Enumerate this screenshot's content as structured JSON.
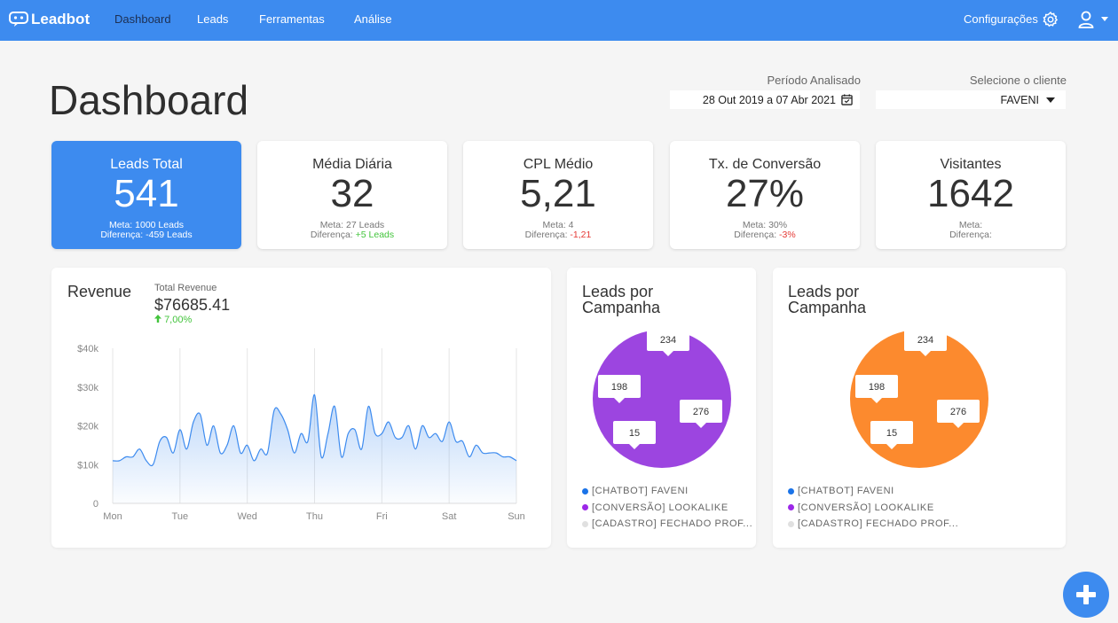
{
  "nav": {
    "brand": "Leadbot",
    "items": [
      "Dashboard",
      "Leads",
      "Ferramentas",
      "Análise"
    ],
    "active": "Dashboard",
    "config_label": "Configurações"
  },
  "page": {
    "title": "Dashboard",
    "period_label": "Período Analisado",
    "period_value": "28 Out 2019 a 07 Abr 2021",
    "client_label": "Selecione o cliente",
    "client_value": "FAVENI"
  },
  "kpis": [
    {
      "title": "Leads Total",
      "value": "541",
      "meta": "Meta: 1000 Leads",
      "diff_label": "Diferença:",
      "diff": "-459 Leads",
      "diff_status": "none"
    },
    {
      "title": "Média Diária",
      "value": "32",
      "meta": "Meta: 27 Leads",
      "diff_label": "Diferença:",
      "diff": "+5 Leads",
      "diff_status": "positive"
    },
    {
      "title": "CPL Médio",
      "value": "5,21",
      "meta": "Meta: 4",
      "diff_label": "Diferença:",
      "diff": "-1,21",
      "diff_status": "negative"
    },
    {
      "title": "Tx. de Conversão",
      "value": "27%",
      "meta": "Meta: 30%",
      "diff_label": "Diferença:",
      "diff": "-3%",
      "diff_status": "negative"
    },
    {
      "title": "Visitantes",
      "value": "1642",
      "meta": "Meta:",
      "diff_label": "Diferença:",
      "diff": "",
      "diff_status": "none"
    }
  ],
  "revenue": {
    "title": "Revenue",
    "total_label": "Total Revenue",
    "total_value": "$76685.41",
    "change": "7,00%",
    "icons": {
      "change": "arrow-up-icon"
    }
  },
  "colors": {
    "primary": "#3d8bef",
    "positive": "#43c43c",
    "negative": "#e53935",
    "purple": "#9c45e0",
    "orange": "#fc8a2e",
    "line": "#3d8bef"
  },
  "chart_data": [
    {
      "type": "area",
      "title": "Revenue",
      "categories": [
        "Mon",
        "Tue",
        "Wed",
        "Thu",
        "Fri",
        "Sat",
        "Sun"
      ],
      "ytick_labels": [
        "0",
        "$10k",
        "$20k",
        "$30k",
        "$40k"
      ],
      "ylim": [
        0,
        40000
      ],
      "grid": "vertical",
      "series": [
        {
          "x": [
            0,
            0.1,
            0.2,
            0.3,
            0.4,
            0.5,
            0.6,
            0.7,
            0.8,
            0.9,
            1,
            1.1,
            1.2,
            1.3,
            1.4,
            1.5,
            1.6,
            1.7,
            1.8,
            1.9,
            2,
            2.1,
            2.2,
            2.3,
            2.4,
            2.5,
            2.6,
            2.7,
            2.8,
            2.9,
            3,
            3.1,
            3.2,
            3.3,
            3.4,
            3.5,
            3.6,
            3.7,
            3.8,
            3.9,
            4,
            4.1,
            4.2,
            4.3,
            4.4,
            4.5,
            4.6,
            4.7,
            4.8,
            4.9,
            5,
            5.1,
            5.2,
            5.3,
            5.4,
            5.5,
            5.6,
            5.7,
            5.8,
            5.9,
            6
          ],
          "values": [
            11000,
            11000,
            12000,
            12000,
            14000,
            11000,
            10000,
            16000,
            17000,
            13000,
            19000,
            14000,
            21000,
            23000,
            15000,
            20000,
            13000,
            15000,
            20000,
            13000,
            15000,
            11000,
            14000,
            13000,
            24000,
            23000,
            19000,
            13000,
            18000,
            16000,
            28000,
            12000,
            18000,
            25000,
            12000,
            18000,
            19000,
            14000,
            25000,
            18000,
            18000,
            21000,
            17000,
            17000,
            20000,
            14000,
            20000,
            17000,
            18000,
            16000,
            21000,
            16000,
            16000,
            12000,
            15000,
            13000,
            13000,
            13000,
            12000,
            12000,
            11000
          ]
        }
      ]
    },
    {
      "type": "pie",
      "title": "Leads por Campanha",
      "labels": [
        "[CHATBOT] FAVENI",
        "[CONVERSÃO] LOOKALIKE",
        "[CADASTRO] FECHADO PROF..."
      ],
      "data_labels": [
        "234",
        "276",
        "15",
        "198"
      ],
      "slice_color": "#9c45e0",
      "legend_position": "bottom"
    },
    {
      "type": "pie",
      "title": "Leads por Campanha",
      "labels": [
        "[CHATBOT] FAVENI",
        "[CONVERSÃO] LOOKALIKE",
        "[CADASTRO] FECHADO PROF..."
      ],
      "data_labels": [
        "234",
        "276",
        "15",
        "198"
      ],
      "slice_color": "#fc8a2e",
      "legend_position": "bottom"
    }
  ],
  "legend_colors": [
    "#1a73e8",
    "#9c27e8",
    "#e0e0e0"
  ],
  "pies": [
    {
      "title_line1": "Leads por",
      "title_line2": "Campanha"
    },
    {
      "title_line1": "Leads por",
      "title_line2": "Campanha"
    }
  ],
  "icons": {
    "brand": "chat-bot-icon",
    "settings": "gear-icon",
    "user": "user-icon",
    "calendar": "calendar-icon",
    "add": "plus-icon"
  }
}
